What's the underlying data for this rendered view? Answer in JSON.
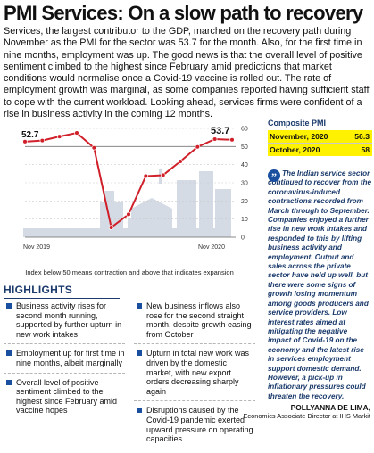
{
  "headline": "PMI Services: On a slow path to recovery",
  "intro": "Services, the largest contributor to the GDP, marched on the recovery path during November as the PMI for the sector was 53.7 for the month. Also, for the first time in nine months, employment was up. The good news is that the overall level of positive sentiment climbed to the highest since February amid predictions that market conditions would normalise once a Covid-19 vaccine is rolled out. The rate of employment growth was marginal, as some companies reported having sufficient staff to cope with the current workload. Looking ahead, services firms were confident of a rise in business activity in the coming 12 months.",
  "chart_data": {
    "type": "line",
    "x": [
      "Nov 2019",
      "Dec 2019",
      "Jan 2020",
      "Feb 2020",
      "Mar 2020",
      "Apr 2020",
      "May 2020",
      "Jun 2020",
      "Jul 2020",
      "Aug 2020",
      "Sep 2020",
      "Oct 2020",
      "Nov 2020"
    ],
    "values": [
      52.7,
      53.3,
      55.5,
      57.5,
      49.3,
      5.4,
      12.6,
      33.7,
      34.2,
      41.8,
      49.8,
      54.1,
      53.7
    ],
    "first_label": "52.7",
    "last_label": "53.7",
    "x_start_label": "Nov 2019",
    "x_end_label": "Nov 2020",
    "y_ticks": [
      0,
      10,
      20,
      30,
      40,
      50,
      60
    ],
    "ylim": [
      0,
      60
    ],
    "threshold": 50,
    "grid": true,
    "line_color": "#d0202a",
    "note": "Index below 50 means contraction and above that indicates expansion"
  },
  "composite_pmi": {
    "title": "Composite PMI",
    "rows": [
      {
        "label": "November, 2020",
        "value": "56.3"
      },
      {
        "label": "October, 2020",
        "value": "58"
      }
    ],
    "highlight_color": "#fff200"
  },
  "highlights": {
    "title": "HIGHLIGHTS",
    "left": [
      "Business activity rises for second month running, supported by further upturn in new work intakes",
      "Employment up for first time in nine months, albeit marginally",
      "Overall level of positive sentiment climbed to the highest since February amid vaccine hopes"
    ],
    "right": [
      "New business inflows also rose for the second straight month, despite growth easing from October",
      "Upturn in total new work was driven by the domestic market, with new export orders decreasing sharply again",
      "Disruptions caused by the Covid-19 pandemic exerted upward pressure on operating capacities"
    ]
  },
  "quote": {
    "icon": "quote-icon",
    "text": "The Indian service sector continued to recover from the coronavirus-induced contractions recorded from March through to September. Companies enjoyed a further rise in new work intakes and responded to this by lifting business activity and employment. Output and sales across the private sector have held up well, but there were some signs of growth losing momentum among goods producers and service providers. Low interest rates aimed at mitigating the negative impact of Covid-19 on the economy and the latest rise in services employment support domestic demand. However, a pick-up in inflationary pressures could threaten the recovery.",
    "author": "POLLYANNA DE LIMA,",
    "author_title": "Economics Associate Director at IHS Markit"
  },
  "colors": {
    "accent": "#1a3a6b",
    "bullet": "#1a4fa0",
    "line": "#d0202a"
  }
}
